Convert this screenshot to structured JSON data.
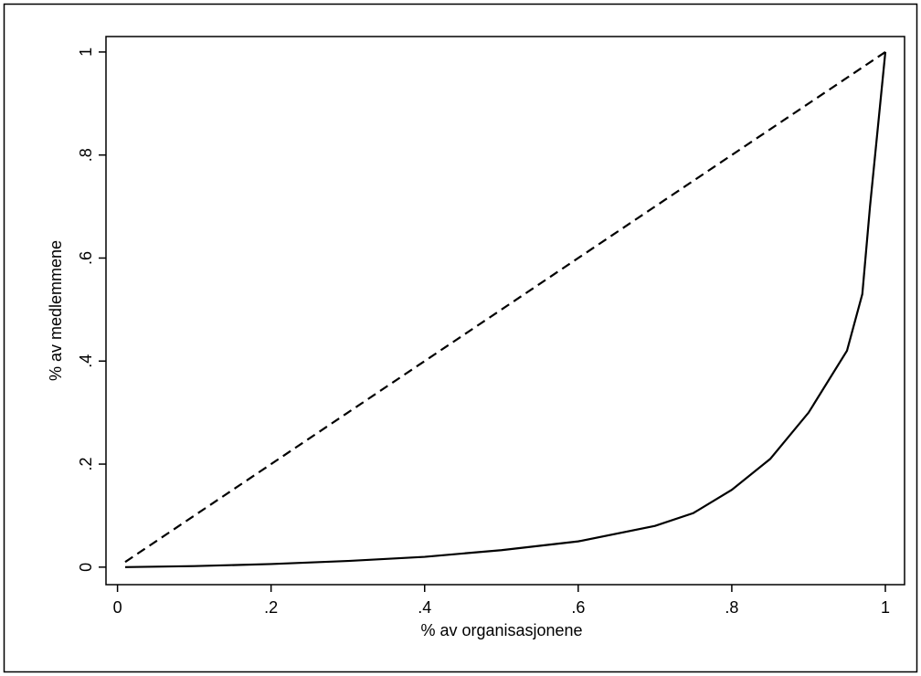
{
  "chart_data": {
    "type": "line",
    "x_label": "% av organisasjonene",
    "y_label": "% av medlemmene",
    "xlim": [
      -0.015,
      1.025
    ],
    "ylim": [
      -0.034,
      1.03
    ],
    "xticks": [
      0,
      {
        "value": 0.2,
        "label": ".2"
      },
      {
        "value": 0.4,
        "label": ".4"
      },
      {
        "value": 0.6,
        "label": ".6"
      },
      {
        "value": 0.8,
        "label": ".8"
      },
      1
    ],
    "yticks": [
      0,
      {
        "value": 0.2,
        "label": ".2"
      },
      {
        "value": 0.4,
        "label": ".4"
      },
      {
        "value": 0.6,
        "label": ".6"
      },
      {
        "value": 0.8,
        "label": ".8"
      },
      1
    ],
    "grid": false,
    "series": [
      {
        "color": "#000000",
        "dash": "10,6",
        "x": [
          0.01,
          1
        ],
        "values": [
          0.01,
          1
        ]
      },
      {
        "color": "#000000",
        "dash": "none",
        "x": [
          0.01,
          0.1,
          0.2,
          0.3,
          0.4,
          0.5,
          0.6,
          0.7,
          0.75,
          0.8,
          0.85,
          0.9,
          0.95,
          0.97,
          0.98,
          1
        ],
        "values": [
          0,
          0.002,
          0.006,
          0.012,
          0.02,
          0.033,
          0.05,
          0.08,
          0.105,
          0.15,
          0.21,
          0.3,
          0.42,
          0.53,
          0.7,
          1
        ]
      }
    ]
  }
}
